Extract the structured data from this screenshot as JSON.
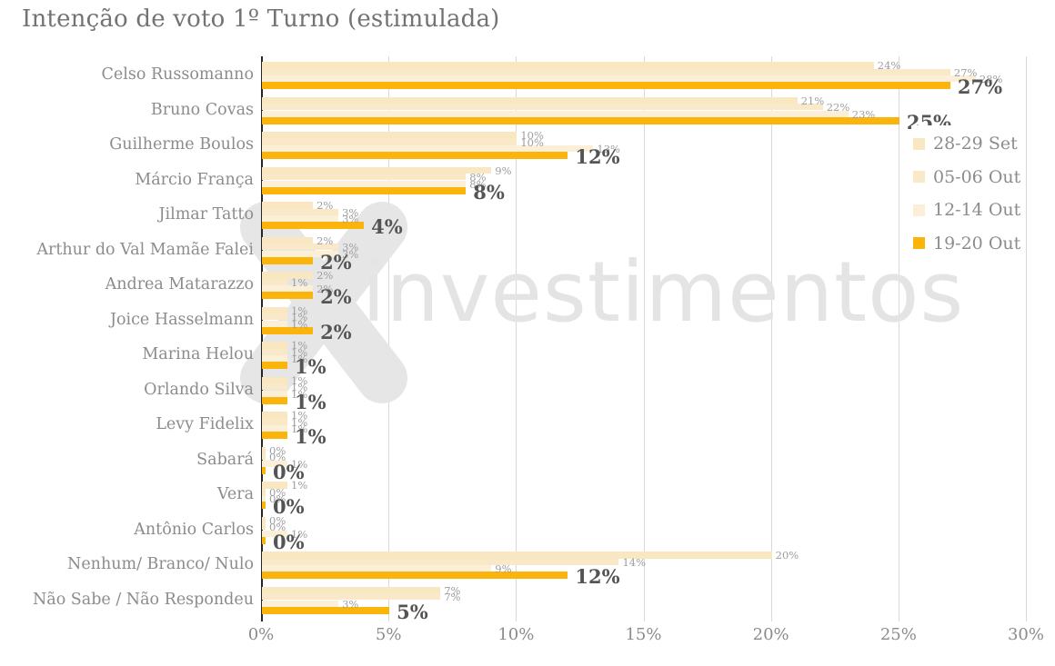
{
  "title": "Intenção de voto 1º Turno (estimulada)",
  "watermark": {
    "symbol": "XP",
    "text": "investimentos"
  },
  "chart_data": {
    "type": "bar",
    "orientation": "horizontal",
    "title": "Intenção de voto 1º Turno (estimulada)",
    "categories": [
      "Celso Russomanno",
      "Bruno Covas",
      "Guilherme Boulos",
      "Márcio França",
      "Jilmar Tatto",
      "Arthur do Val Mamãe Falei",
      "Andrea Matarazzo",
      "Joice Hasselmann",
      "Marina Helou",
      "Orlando Silva",
      "Levy Fidelix",
      "Sabará",
      "Vera",
      "Antônio Carlos",
      "Nenhum/ Branco/ Nulo",
      "Não Sabe / Não Respondeu"
    ],
    "series": [
      {
        "name": "28-29 Set",
        "color": "#f9e7c1",
        "values": [
          24,
          21,
          10,
          9,
          2,
          2,
          2,
          1,
          1,
          1,
          1,
          0,
          1,
          0,
          20,
          7
        ]
      },
      {
        "name": "05-06 Out",
        "color": "#fae9c8",
        "values": [
          27,
          22,
          10,
          8,
          3,
          3,
          1,
          1,
          1,
          1,
          1,
          0,
          0,
          0,
          14,
          7
        ]
      },
      {
        "name": "12-14 Out",
        "color": "#fcefd8",
        "values": [
          28,
          23,
          13,
          8,
          3,
          3,
          2,
          1,
          1,
          1,
          1,
          1,
          0,
          1,
          9,
          3
        ]
      },
      {
        "name": "19-20 Out",
        "color": "#fab40c",
        "values": [
          27,
          25,
          12,
          8,
          4,
          2,
          2,
          2,
          1,
          1,
          1,
          0,
          0,
          0,
          12,
          5
        ]
      }
    ],
    "value_suffix": "%",
    "xlim": [
      0,
      30
    ],
    "x_ticks": [
      "0%",
      "5%",
      "10%",
      "15%",
      "20%",
      "25%",
      "30%"
    ],
    "grid": true,
    "legend_position": "right",
    "value_labels": "all bars; last series (19-20 Out) shown bold"
  }
}
